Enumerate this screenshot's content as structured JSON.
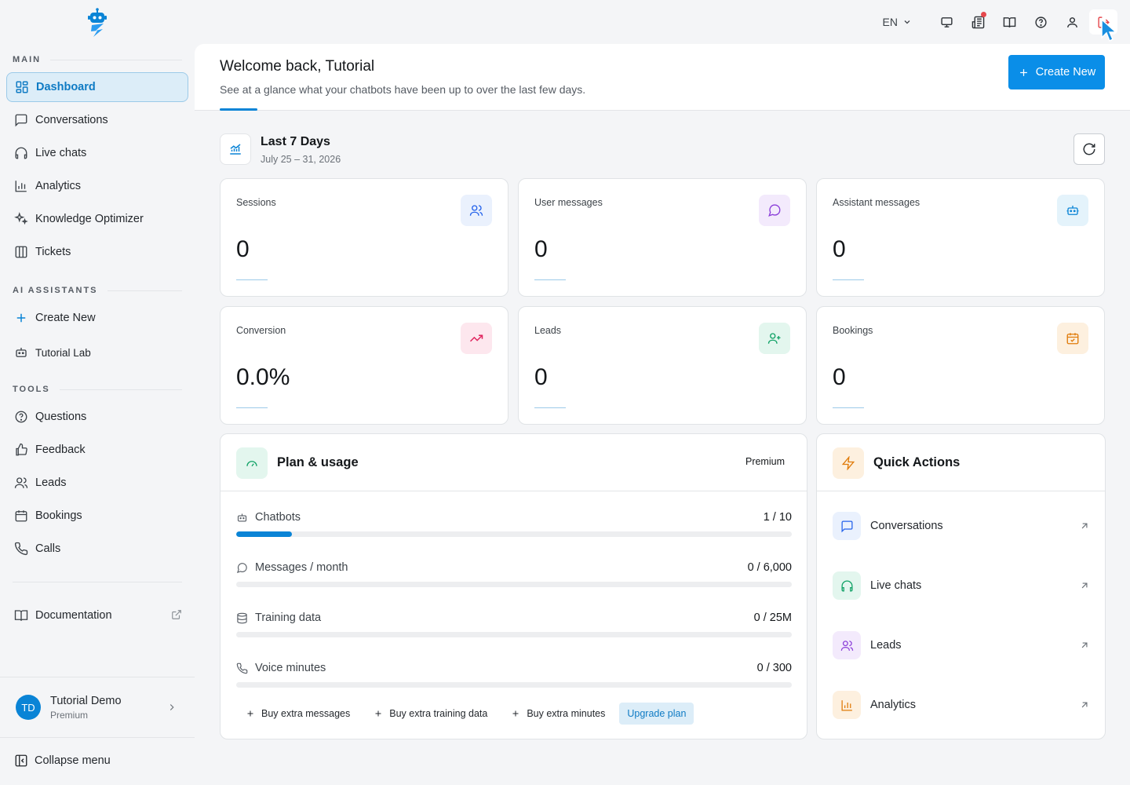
{
  "topbar": {
    "language": "EN",
    "icons": [
      "monitor-icon",
      "news-icon",
      "book-open-icon",
      "help-circle-icon",
      "user-icon",
      "logout-icon"
    ],
    "notification_color": "#e5484d"
  },
  "sidebar": {
    "sections": {
      "main": "MAIN",
      "ai_assistants": "AI ASSISTANTS",
      "tools": "TOOLS"
    },
    "main_items": [
      {
        "label": "Dashboard",
        "icon": "dashboard-icon",
        "active": true
      },
      {
        "label": "Conversations",
        "icon": "message-square-icon"
      },
      {
        "label": "Live chats",
        "icon": "headphones-icon"
      },
      {
        "label": "Analytics",
        "icon": "bar-chart-icon"
      },
      {
        "label": "Knowledge Optimizer",
        "icon": "sparkles-icon"
      },
      {
        "label": "Tickets",
        "icon": "columns-icon"
      }
    ],
    "assistant_items": [
      {
        "label": "Create New",
        "icon": "plus-icon"
      },
      {
        "label": "Tutorial Lab",
        "icon": "bot-icon"
      }
    ],
    "tool_items": [
      {
        "label": "Questions",
        "icon": "help-circle-icon"
      },
      {
        "label": "Feedback",
        "icon": "thumbs-up-icon"
      },
      {
        "label": "Leads",
        "icon": "users-icon"
      },
      {
        "label": "Bookings",
        "icon": "calendar-icon"
      },
      {
        "label": "Calls",
        "icon": "phone-icon"
      }
    ],
    "documentation": "Documentation",
    "user": {
      "initials": "TD",
      "name": "Tutorial Demo",
      "plan": "Premium"
    },
    "collapse": "Collapse menu"
  },
  "header": {
    "title": "Welcome back, Tutorial",
    "subtitle": "See at a glance what your chatbots have been up to over the last few days.",
    "create_button": "Create New"
  },
  "period": {
    "title": "Last 7 Days",
    "date": "July 25 – 31, 2026"
  },
  "stats": [
    {
      "label": "Sessions",
      "value": "0",
      "icon": "users-icon",
      "color": "#2563eb",
      "bg": "#eaf1fd"
    },
    {
      "label": "User messages",
      "value": "0",
      "icon": "message-circle-icon",
      "color": "#8b3fd9",
      "bg": "#f3eafc"
    },
    {
      "label": "Assistant messages",
      "value": "0",
      "icon": "bot-icon",
      "color": "#0a84d6",
      "bg": "#e4f3fb"
    },
    {
      "label": "Conversion",
      "value": "0.0%",
      "icon": "trending-up-icon",
      "color": "#e0245e",
      "bg": "#fde7ee"
    },
    {
      "label": "Leads",
      "value": "0",
      "icon": "user-plus-icon",
      "color": "#10a266",
      "bg": "#e3f6ee"
    },
    {
      "label": "Bookings",
      "value": "0",
      "icon": "calendar-check-icon",
      "color": "#e07b0a",
      "bg": "#fdf0df"
    }
  ],
  "plan": {
    "title": "Plan & usage",
    "badge": "Premium",
    "rows": [
      {
        "label": "Chatbots",
        "value": "1 / 10",
        "icon": "bot-icon",
        "fill": 0.1
      },
      {
        "label": "Messages / month",
        "value": "0 / 6,000",
        "icon": "message-circle-icon",
        "fill": 0
      },
      {
        "label": "Training data",
        "value": "0 / 25M",
        "icon": "database-icon",
        "fill": 0
      },
      {
        "label": "Voice minutes",
        "value": "0 / 300",
        "icon": "phone-icon",
        "fill": 0
      }
    ],
    "buy": [
      "Buy extra messages",
      "Buy extra training data",
      "Buy extra minutes"
    ],
    "upgrade": "Upgrade plan"
  },
  "quick_actions": {
    "title": "Quick Actions",
    "items": [
      {
        "label": "Conversations",
        "icon": "message-square-icon",
        "color": "#2563eb",
        "bg": "#eaf1fd"
      },
      {
        "label": "Live chats",
        "icon": "headphones-icon",
        "color": "#10a266",
        "bg": "#e3f6ee"
      },
      {
        "label": "Leads",
        "icon": "users-icon",
        "color": "#8b3fd9",
        "bg": "#f3eafc"
      },
      {
        "label": "Analytics",
        "icon": "bar-chart-icon",
        "color": "#e07b0a",
        "bg": "#fdf0df"
      }
    ]
  }
}
